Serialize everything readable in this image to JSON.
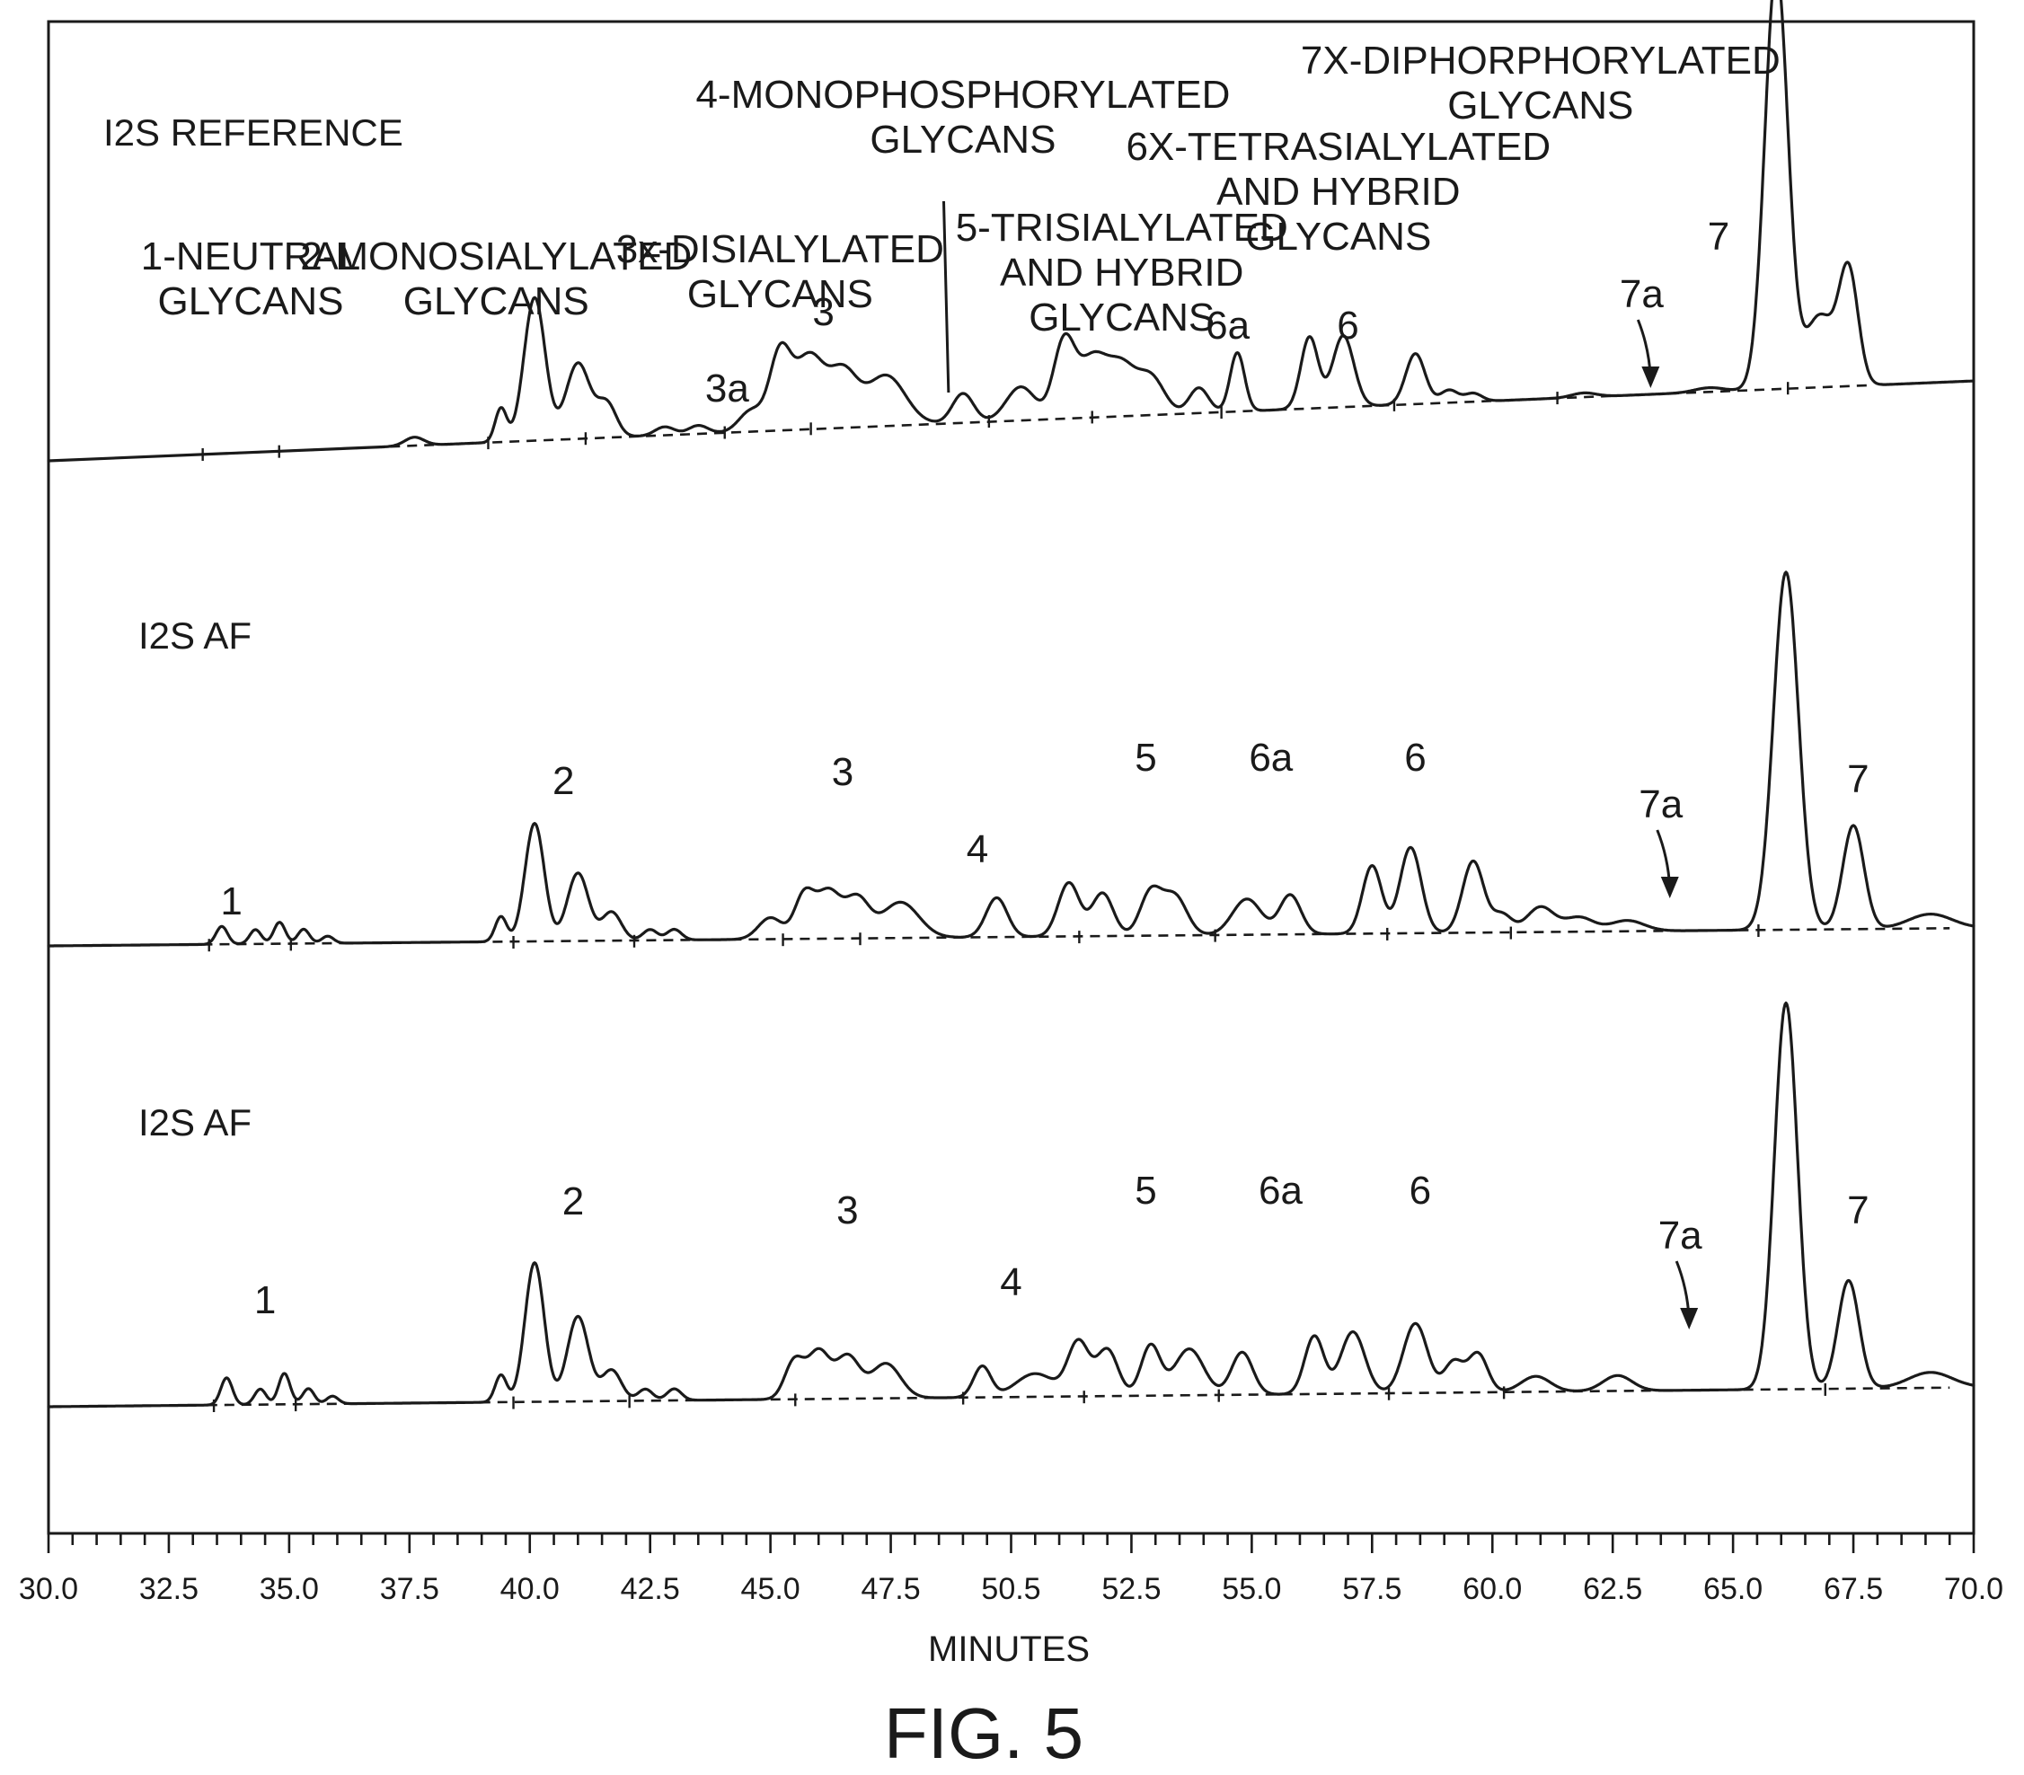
{
  "chart_data": {
    "type": "line",
    "xlabel": "MINUTES",
    "caption": "FIG. 5",
    "xlim": [
      30.0,
      70.0
    ],
    "x_ticks": [
      "30.0",
      "32.5",
      "35.0",
      "37.5",
      "40.0",
      "42.5",
      "45.0",
      "47.5",
      "50.5",
      "52.5",
      "55.0",
      "57.5",
      "60.0",
      "62.5",
      "65.0",
      "67.5",
      "70.0"
    ],
    "x_tick_values": [
      30.0,
      32.5,
      35.0,
      37.5,
      40.0,
      42.5,
      45.0,
      47.5,
      50.0,
      52.5,
      55.0,
      57.5,
      60.0,
      62.5,
      65.0,
      67.5,
      70.0
    ],
    "y_range": [
      0,
      1
    ],
    "grid": false,
    "legend": "none",
    "panels": [
      {
        "title": "I2S REFERENCE",
        "group_labels": [
          {
            "text": [
              "1-NEUTRAL",
              "GLYCANS"
            ],
            "x": 34.2
          },
          {
            "text": [
              "2-MONOSIALYLATED",
              "GLYCANS"
            ],
            "x": 39.3
          },
          {
            "text": [
              "3x-DISIALYLATED",
              "GLYCANS"
            ],
            "x": 45.2
          },
          {
            "text": [
              "4-MONOPHOSPHORYLATED",
              "GLYCANS"
            ],
            "x": 49.0
          },
          {
            "text": [
              "5-TRISIALYLATED",
              "AND HYBRID",
              "GLYCANS"
            ],
            "x": 52.3
          },
          {
            "text": [
              "6X-TETRASIALYLATED",
              "AND HYBRID",
              "GLYCANS"
            ],
            "x": 56.8
          },
          {
            "text": [
              "7X-DIPHORPHORYLATED",
              "GLYCANS"
            ],
            "x": 61.0
          }
        ],
        "peak_labels": [
          {
            "text": "3a",
            "x": 44.1
          },
          {
            "text": "3",
            "x": 46.1
          },
          {
            "text": "6a",
            "x": 54.5
          },
          {
            "text": "6",
            "x": 57.0
          },
          {
            "text": "7a",
            "x": 63.1
          },
          {
            "text": "7",
            "x": 64.7
          }
        ],
        "baseline": [
          0.0,
          0.19
        ],
        "peaks": [
          {
            "x": 33.6,
            "height": 0.05,
            "width": 0.18
          },
          {
            "x": 34.1,
            "height": 0.06,
            "width": 0.15
          },
          {
            "x": 34.6,
            "height": 0.07,
            "width": 0.15
          },
          {
            "x": 35.1,
            "height": 0.04,
            "width": 0.14
          },
          {
            "x": 35.7,
            "height": 0.03,
            "width": 0.14
          },
          {
            "x": 37.6,
            "height": 0.02,
            "width": 0.2
          },
          {
            "x": 39.4,
            "height": 0.08,
            "width": 0.12
          },
          {
            "x": 40.1,
            "height": 0.34,
            "width": 0.22
          },
          {
            "x": 41.0,
            "height": 0.18,
            "width": 0.25
          },
          {
            "x": 41.6,
            "height": 0.08,
            "width": 0.2
          },
          {
            "x": 42.8,
            "height": 0.02,
            "width": 0.2
          },
          {
            "x": 43.5,
            "height": 0.02,
            "width": 0.2
          },
          {
            "x": 44.6,
            "height": 0.05,
            "width": 0.25
          },
          {
            "x": 45.2,
            "height": 0.18,
            "width": 0.22
          },
          {
            "x": 45.8,
            "height": 0.17,
            "width": 0.3
          },
          {
            "x": 46.5,
            "height": 0.13,
            "width": 0.3
          },
          {
            "x": 47.4,
            "height": 0.12,
            "width": 0.4
          },
          {
            "x": 49.0,
            "height": 0.07,
            "width": 0.22
          },
          {
            "x": 50.2,
            "height": 0.08,
            "width": 0.3
          },
          {
            "x": 51.1,
            "height": 0.18,
            "width": 0.22
          },
          {
            "x": 51.7,
            "height": 0.14,
            "width": 0.3
          },
          {
            "x": 52.3,
            "height": 0.11,
            "width": 0.28
          },
          {
            "x": 52.9,
            "height": 0.09,
            "width": 0.28
          },
          {
            "x": 53.9,
            "height": 0.06,
            "width": 0.2
          },
          {
            "x": 54.7,
            "height": 0.14,
            "width": 0.15
          },
          {
            "x": 56.2,
            "height": 0.17,
            "width": 0.18
          },
          {
            "x": 56.9,
            "height": 0.17,
            "width": 0.22
          },
          {
            "x": 58.4,
            "height": 0.12,
            "width": 0.2
          },
          {
            "x": 59.1,
            "height": 0.03,
            "width": 0.18
          },
          {
            "x": 59.6,
            "height": 0.02,
            "width": 0.18
          },
          {
            "x": 61.9,
            "height": 0.01,
            "width": 0.25
          },
          {
            "x": 64.5,
            "height": 0.01,
            "width": 0.3
          },
          {
            "x": 65.9,
            "height": 1.0,
            "width": 0.24
          },
          {
            "x": 66.8,
            "height": 0.17,
            "width": 0.3
          },
          {
            "x": 67.4,
            "height": 0.27,
            "width": 0.2
          }
        ]
      },
      {
        "title": "I2S AF",
        "group_labels": [],
        "peak_labels": [
          {
            "text": "1",
            "x": 33.8
          },
          {
            "text": "2",
            "x": 40.7
          },
          {
            "text": "3",
            "x": 46.5
          },
          {
            "text": "4",
            "x": 49.3
          },
          {
            "text": "5",
            "x": 52.8
          },
          {
            "text": "6a",
            "x": 55.4
          },
          {
            "text": "6",
            "x": 58.4
          },
          {
            "text": "7a",
            "x": 63.5
          },
          {
            "text": "7",
            "x": 67.6
          }
        ],
        "baseline": [
          0.0,
          0.05
        ],
        "peaks": [
          {
            "x": 33.6,
            "height": 0.05,
            "width": 0.12
          },
          {
            "x": 34.3,
            "height": 0.04,
            "width": 0.12
          },
          {
            "x": 34.8,
            "height": 0.06,
            "width": 0.12
          },
          {
            "x": 35.3,
            "height": 0.04,
            "width": 0.12
          },
          {
            "x": 35.8,
            "height": 0.02,
            "width": 0.12
          },
          {
            "x": 39.4,
            "height": 0.07,
            "width": 0.12
          },
          {
            "x": 40.1,
            "height": 0.33,
            "width": 0.2
          },
          {
            "x": 41.0,
            "height": 0.19,
            "width": 0.22
          },
          {
            "x": 41.7,
            "height": 0.08,
            "width": 0.2
          },
          {
            "x": 42.5,
            "height": 0.03,
            "width": 0.15
          },
          {
            "x": 43.0,
            "height": 0.03,
            "width": 0.15
          },
          {
            "x": 45.0,
            "height": 0.06,
            "width": 0.25
          },
          {
            "x": 45.7,
            "height": 0.12,
            "width": 0.2
          },
          {
            "x": 46.2,
            "height": 0.13,
            "width": 0.25
          },
          {
            "x": 46.8,
            "height": 0.11,
            "width": 0.25
          },
          {
            "x": 47.7,
            "height": 0.1,
            "width": 0.38
          },
          {
            "x": 49.7,
            "height": 0.11,
            "width": 0.22
          },
          {
            "x": 51.2,
            "height": 0.15,
            "width": 0.22
          },
          {
            "x": 51.9,
            "height": 0.12,
            "width": 0.22
          },
          {
            "x": 52.9,
            "height": 0.12,
            "width": 0.22
          },
          {
            "x": 53.4,
            "height": 0.11,
            "width": 0.25
          },
          {
            "x": 54.9,
            "height": 0.1,
            "width": 0.3
          },
          {
            "x": 55.8,
            "height": 0.11,
            "width": 0.22
          },
          {
            "x": 57.5,
            "height": 0.19,
            "width": 0.2
          },
          {
            "x": 58.3,
            "height": 0.24,
            "width": 0.22
          },
          {
            "x": 59.6,
            "height": 0.2,
            "width": 0.22
          },
          {
            "x": 60.2,
            "height": 0.05,
            "width": 0.2
          },
          {
            "x": 61.0,
            "height": 0.07,
            "width": 0.28
          },
          {
            "x": 61.8,
            "height": 0.04,
            "width": 0.3
          },
          {
            "x": 62.8,
            "height": 0.03,
            "width": 0.35
          },
          {
            "x": 66.1,
            "height": 1.0,
            "width": 0.26
          },
          {
            "x": 67.5,
            "height": 0.29,
            "width": 0.22
          },
          {
            "x": 69.1,
            "height": 0.04,
            "width": 0.45
          }
        ]
      },
      {
        "title": "I2S AF",
        "group_labels": [],
        "peak_labels": [
          {
            "text": "1",
            "x": 34.5
          },
          {
            "text": "2",
            "x": 40.9
          },
          {
            "text": "3",
            "x": 46.6
          },
          {
            "text": "4",
            "x": 50.0
          },
          {
            "text": "5",
            "x": 52.8
          },
          {
            "text": "6a",
            "x": 55.6
          },
          {
            "text": "6",
            "x": 58.5
          },
          {
            "text": "7a",
            "x": 63.9
          },
          {
            "text": "7",
            "x": 67.6
          }
        ],
        "baseline": [
          0.0,
          0.05
        ],
        "peaks": [
          {
            "x": 33.7,
            "height": 0.07,
            "width": 0.12
          },
          {
            "x": 34.4,
            "height": 0.04,
            "width": 0.12
          },
          {
            "x": 34.9,
            "height": 0.08,
            "width": 0.12
          },
          {
            "x": 35.4,
            "height": 0.04,
            "width": 0.12
          },
          {
            "x": 35.9,
            "height": 0.02,
            "width": 0.12
          },
          {
            "x": 39.4,
            "height": 0.07,
            "width": 0.12
          },
          {
            "x": 40.1,
            "height": 0.36,
            "width": 0.2
          },
          {
            "x": 41.0,
            "height": 0.22,
            "width": 0.22
          },
          {
            "x": 41.7,
            "height": 0.08,
            "width": 0.2
          },
          {
            "x": 42.4,
            "height": 0.03,
            "width": 0.15
          },
          {
            "x": 43.0,
            "height": 0.03,
            "width": 0.15
          },
          {
            "x": 45.5,
            "height": 0.1,
            "width": 0.2
          },
          {
            "x": 46.0,
            "height": 0.12,
            "width": 0.22
          },
          {
            "x": 46.6,
            "height": 0.11,
            "width": 0.25
          },
          {
            "x": 47.4,
            "height": 0.09,
            "width": 0.3
          },
          {
            "x": 49.4,
            "height": 0.08,
            "width": 0.18
          },
          {
            "x": 50.5,
            "height": 0.06,
            "width": 0.4
          },
          {
            "x": 51.4,
            "height": 0.14,
            "width": 0.22
          },
          {
            "x": 52.0,
            "height": 0.12,
            "width": 0.22
          },
          {
            "x": 52.9,
            "height": 0.13,
            "width": 0.2
          },
          {
            "x": 53.7,
            "height": 0.12,
            "width": 0.3
          },
          {
            "x": 54.8,
            "height": 0.11,
            "width": 0.22
          },
          {
            "x": 56.3,
            "height": 0.15,
            "width": 0.2
          },
          {
            "x": 57.1,
            "height": 0.16,
            "width": 0.25
          },
          {
            "x": 58.4,
            "height": 0.18,
            "width": 0.25
          },
          {
            "x": 59.2,
            "height": 0.08,
            "width": 0.2
          },
          {
            "x": 59.7,
            "height": 0.1,
            "width": 0.2
          },
          {
            "x": 60.9,
            "height": 0.04,
            "width": 0.3
          },
          {
            "x": 62.6,
            "height": 0.04,
            "width": 0.3
          },
          {
            "x": 66.1,
            "height": 1.0,
            "width": 0.24
          },
          {
            "x": 67.4,
            "height": 0.28,
            "width": 0.22
          },
          {
            "x": 69.1,
            "height": 0.04,
            "width": 0.45
          }
        ]
      }
    ]
  }
}
